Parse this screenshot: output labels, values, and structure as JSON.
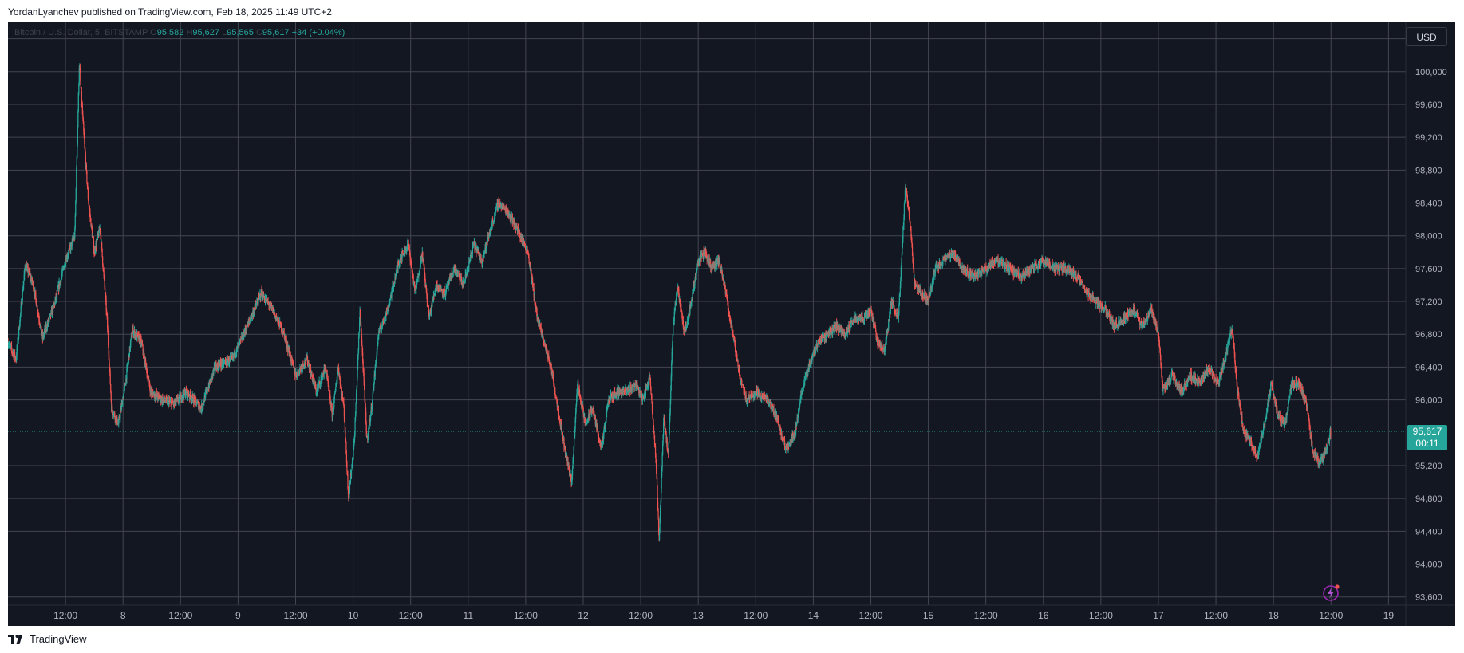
{
  "header": {
    "published_text": "YordanLyanchev published on TradingView.com, Feb 18, 2025 11:49 UTC+2"
  },
  "legend": {
    "symbol_text": "Bitcoin / U.S. Dollar, 5, BITSTAMP",
    "o_label": "O",
    "o_value": "95,582",
    "h_label": "H",
    "h_value": "95,627",
    "l_label": "L",
    "l_value": "95,565",
    "c_label": "C",
    "c_value": "95,617",
    "change_text": "+34 (+0.04%)"
  },
  "currency_button": {
    "label": "USD"
  },
  "price_tag": {
    "price": "95,617",
    "countdown": "00:11"
  },
  "footer": {
    "brand": "TradingView"
  },
  "colors": {
    "background": "#131722",
    "grid": "#434651",
    "up": "#26a69a",
    "down": "#ef5350",
    "axis_text": "#b2b5be",
    "accent_purple": "#9c27b0"
  },
  "icons": {
    "footer_logo": "tradingview-logo-icon",
    "ai_badge": "sparkle-lightning-icon"
  },
  "chart_data": {
    "type": "candlestick",
    "symbol": "Bitcoin / U.S. Dollar, 5, BITSTAMP",
    "interval": "5",
    "ylim": [
      93500,
      100600
    ],
    "y_ticks": [
      {
        "value": 93600,
        "label": "93,600"
      },
      {
        "value": 94000,
        "label": "94,000"
      },
      {
        "value": 94400,
        "label": "94,400"
      },
      {
        "value": 94800,
        "label": "94,800"
      },
      {
        "value": 95200,
        "label": "95,200"
      },
      {
        "value": 96000,
        "label": "96,000"
      },
      {
        "value": 96400,
        "label": "96,400"
      },
      {
        "value": 96800,
        "label": "96,800"
      },
      {
        "value": 97200,
        "label": "97,200"
      },
      {
        "value": 97600,
        "label": "97,600"
      },
      {
        "value": 98000,
        "label": "98,000"
      },
      {
        "value": 98400,
        "label": "98,400"
      },
      {
        "value": 98800,
        "label": "98,800"
      },
      {
        "value": 99200,
        "label": "99,200"
      },
      {
        "value": 99600,
        "label": "99,600"
      },
      {
        "value": 100000,
        "label": "100,000"
      },
      {
        "value": 100400,
        "label": "100,400"
      }
    ],
    "xlim": [
      0,
      12.15
    ],
    "x_ticks": [
      {
        "x": 0.5,
        "label": "12:00"
      },
      {
        "x": 1,
        "label": "8"
      },
      {
        "x": 1.5,
        "label": "12:00"
      },
      {
        "x": 2,
        "label": "9"
      },
      {
        "x": 2.5,
        "label": "12:00"
      },
      {
        "x": 3,
        "label": "10"
      },
      {
        "x": 3.5,
        "label": "12:00"
      },
      {
        "x": 4,
        "label": "11"
      },
      {
        "x": 4.5,
        "label": "12:00"
      },
      {
        "x": 5,
        "label": "12"
      },
      {
        "x": 5.5,
        "label": "12:00"
      },
      {
        "x": 6,
        "label": "13"
      },
      {
        "x": 6.5,
        "label": "12:00"
      },
      {
        "x": 7,
        "label": "14"
      },
      {
        "x": 7.5,
        "label": "12:00"
      },
      {
        "x": 8,
        "label": "15"
      },
      {
        "x": 8.5,
        "label": "12:00"
      },
      {
        "x": 9,
        "label": "16"
      },
      {
        "x": 9.5,
        "label": "12:00"
      },
      {
        "x": 10,
        "label": "17"
      },
      {
        "x": 10.5,
        "label": "12:00"
      },
      {
        "x": 11,
        "label": "18"
      },
      {
        "x": 11.5,
        "label": "12:00"
      },
      {
        "x": 12,
        "label": "19"
      }
    ],
    "current_price": 95617,
    "price_path": [
      {
        "x": 0.0,
        "y": 96700
      },
      {
        "x": 0.07,
        "y": 96500
      },
      {
        "x": 0.15,
        "y": 97650
      },
      {
        "x": 0.22,
        "y": 97400
      },
      {
        "x": 0.3,
        "y": 96750
      },
      {
        "x": 0.4,
        "y": 97150
      },
      {
        "x": 0.5,
        "y": 97700
      },
      {
        "x": 0.58,
        "y": 98000
      },
      {
        "x": 0.62,
        "y": 100100
      },
      {
        "x": 0.66,
        "y": 99200
      },
      {
        "x": 0.7,
        "y": 98400
      },
      {
        "x": 0.75,
        "y": 97800
      },
      {
        "x": 0.8,
        "y": 98100
      },
      {
        "x": 0.86,
        "y": 97000
      },
      {
        "x": 0.9,
        "y": 95900
      },
      {
        "x": 0.96,
        "y": 95700
      },
      {
        "x": 1.02,
        "y": 96200
      },
      {
        "x": 1.08,
        "y": 96850
      },
      {
        "x": 1.16,
        "y": 96700
      },
      {
        "x": 1.24,
        "y": 96100
      },
      {
        "x": 1.34,
        "y": 96000
      },
      {
        "x": 1.44,
        "y": 95950
      },
      {
        "x": 1.55,
        "y": 96100
      },
      {
        "x": 1.68,
        "y": 95900
      },
      {
        "x": 1.8,
        "y": 96400
      },
      {
        "x": 1.95,
        "y": 96500
      },
      {
        "x": 2.05,
        "y": 96800
      },
      {
        "x": 2.2,
        "y": 97300
      },
      {
        "x": 2.3,
        "y": 97100
      },
      {
        "x": 2.4,
        "y": 96800
      },
      {
        "x": 2.5,
        "y": 96300
      },
      {
        "x": 2.6,
        "y": 96500
      },
      {
        "x": 2.68,
        "y": 96100
      },
      {
        "x": 2.76,
        "y": 96400
      },
      {
        "x": 2.82,
        "y": 95800
      },
      {
        "x": 2.87,
        "y": 96400
      },
      {
        "x": 2.92,
        "y": 95900
      },
      {
        "x": 2.96,
        "y": 94800
      },
      {
        "x": 3.01,
        "y": 95500
      },
      {
        "x": 3.06,
        "y": 97100
      },
      {
        "x": 3.12,
        "y": 95500
      },
      {
        "x": 3.16,
        "y": 95900
      },
      {
        "x": 3.22,
        "y": 96800
      },
      {
        "x": 3.3,
        "y": 97100
      },
      {
        "x": 3.4,
        "y": 97700
      },
      {
        "x": 3.48,
        "y": 97900
      },
      {
        "x": 3.54,
        "y": 97300
      },
      {
        "x": 3.6,
        "y": 97800
      },
      {
        "x": 3.66,
        "y": 97000
      },
      {
        "x": 3.72,
        "y": 97400
      },
      {
        "x": 3.8,
        "y": 97300
      },
      {
        "x": 3.88,
        "y": 97600
      },
      {
        "x": 3.96,
        "y": 97400
      },
      {
        "x": 4.05,
        "y": 97900
      },
      {
        "x": 4.12,
        "y": 97700
      },
      {
        "x": 4.18,
        "y": 98000
      },
      {
        "x": 4.26,
        "y": 98400
      },
      {
        "x": 4.34,
        "y": 98300
      },
      {
        "x": 4.42,
        "y": 98100
      },
      {
        "x": 4.52,
        "y": 97800
      },
      {
        "x": 4.6,
        "y": 97000
      },
      {
        "x": 4.66,
        "y": 96700
      },
      {
        "x": 4.72,
        "y": 96400
      },
      {
        "x": 4.78,
        "y": 95900
      },
      {
        "x": 4.84,
        "y": 95400
      },
      {
        "x": 4.9,
        "y": 95000
      },
      {
        "x": 4.95,
        "y": 96200
      },
      {
        "x": 5.02,
        "y": 95700
      },
      {
        "x": 5.08,
        "y": 95900
      },
      {
        "x": 5.16,
        "y": 95400
      },
      {
        "x": 5.22,
        "y": 96000
      },
      {
        "x": 5.3,
        "y": 96100
      },
      {
        "x": 5.38,
        "y": 96100
      },
      {
        "x": 5.46,
        "y": 96200
      },
      {
        "x": 5.52,
        "y": 96000
      },
      {
        "x": 5.58,
        "y": 96300
      },
      {
        "x": 5.63,
        "y": 95300
      },
      {
        "x": 5.66,
        "y": 94300
      },
      {
        "x": 5.7,
        "y": 95800
      },
      {
        "x": 5.74,
        "y": 95300
      },
      {
        "x": 5.78,
        "y": 96900
      },
      {
        "x": 5.82,
        "y": 97400
      },
      {
        "x": 5.88,
        "y": 96800
      },
      {
        "x": 5.94,
        "y": 97200
      },
      {
        "x": 6.0,
        "y": 97700
      },
      {
        "x": 6.06,
        "y": 97800
      },
      {
        "x": 6.12,
        "y": 97600
      },
      {
        "x": 6.18,
        "y": 97700
      },
      {
        "x": 6.24,
        "y": 97300
      },
      {
        "x": 6.3,
        "y": 96800
      },
      {
        "x": 6.36,
        "y": 96300
      },
      {
        "x": 6.42,
        "y": 96000
      },
      {
        "x": 6.5,
        "y": 96100
      },
      {
        "x": 6.6,
        "y": 96000
      },
      {
        "x": 6.68,
        "y": 95800
      },
      {
        "x": 6.76,
        "y": 95400
      },
      {
        "x": 6.84,
        "y": 95600
      },
      {
        "x": 6.9,
        "y": 96100
      },
      {
        "x": 6.96,
        "y": 96400
      },
      {
        "x": 7.04,
        "y": 96700
      },
      {
        "x": 7.12,
        "y": 96800
      },
      {
        "x": 7.2,
        "y": 96900
      },
      {
        "x": 7.28,
        "y": 96800
      },
      {
        "x": 7.36,
        "y": 97000
      },
      {
        "x": 7.44,
        "y": 97000
      },
      {
        "x": 7.5,
        "y": 97100
      },
      {
        "x": 7.56,
        "y": 96700
      },
      {
        "x": 7.62,
        "y": 96600
      },
      {
        "x": 7.68,
        "y": 97200
      },
      {
        "x": 7.74,
        "y": 97000
      },
      {
        "x": 7.8,
        "y": 98600
      },
      {
        "x": 7.84,
        "y": 98200
      },
      {
        "x": 7.88,
        "y": 97400
      },
      {
        "x": 7.94,
        "y": 97300
      },
      {
        "x": 8.0,
        "y": 97200
      },
      {
        "x": 8.06,
        "y": 97600
      },
      {
        "x": 8.14,
        "y": 97700
      },
      {
        "x": 8.22,
        "y": 97800
      },
      {
        "x": 8.3,
        "y": 97600
      },
      {
        "x": 8.4,
        "y": 97500
      },
      {
        "x": 8.5,
        "y": 97600
      },
      {
        "x": 8.6,
        "y": 97700
      },
      {
        "x": 8.7,
        "y": 97600
      },
      {
        "x": 8.8,
        "y": 97500
      },
      {
        "x": 8.9,
        "y": 97600
      },
      {
        "x": 9.0,
        "y": 97700
      },
      {
        "x": 9.1,
        "y": 97600
      },
      {
        "x": 9.2,
        "y": 97600
      },
      {
        "x": 9.3,
        "y": 97500
      },
      {
        "x": 9.38,
        "y": 97300
      },
      {
        "x": 9.46,
        "y": 97200
      },
      {
        "x": 9.54,
        "y": 97100
      },
      {
        "x": 9.62,
        "y": 96900
      },
      {
        "x": 9.7,
        "y": 97000
      },
      {
        "x": 9.78,
        "y": 97100
      },
      {
        "x": 9.86,
        "y": 96900
      },
      {
        "x": 9.94,
        "y": 97100
      },
      {
        "x": 10.0,
        "y": 96800
      },
      {
        "x": 10.04,
        "y": 96100
      },
      {
        "x": 10.12,
        "y": 96300
      },
      {
        "x": 10.2,
        "y": 96100
      },
      {
        "x": 10.28,
        "y": 96300
      },
      {
        "x": 10.36,
        "y": 96200
      },
      {
        "x": 10.44,
        "y": 96400
      },
      {
        "x": 10.52,
        "y": 96200
      },
      {
        "x": 10.58,
        "y": 96500
      },
      {
        "x": 10.64,
        "y": 96900
      },
      {
        "x": 10.68,
        "y": 96200
      },
      {
        "x": 10.74,
        "y": 95600
      },
      {
        "x": 10.8,
        "y": 95500
      },
      {
        "x": 10.86,
        "y": 95300
      },
      {
        "x": 10.92,
        "y": 95700
      },
      {
        "x": 10.98,
        "y": 96200
      },
      {
        "x": 11.04,
        "y": 95800
      },
      {
        "x": 11.1,
        "y": 95700
      },
      {
        "x": 11.16,
        "y": 96200
      },
      {
        "x": 11.22,
        "y": 96200
      },
      {
        "x": 11.28,
        "y": 96000
      },
      {
        "x": 11.34,
        "y": 95400
      },
      {
        "x": 11.4,
        "y": 95200
      },
      {
        "x": 11.46,
        "y": 95400
      },
      {
        "x": 11.5,
        "y": 95617
      }
    ]
  }
}
